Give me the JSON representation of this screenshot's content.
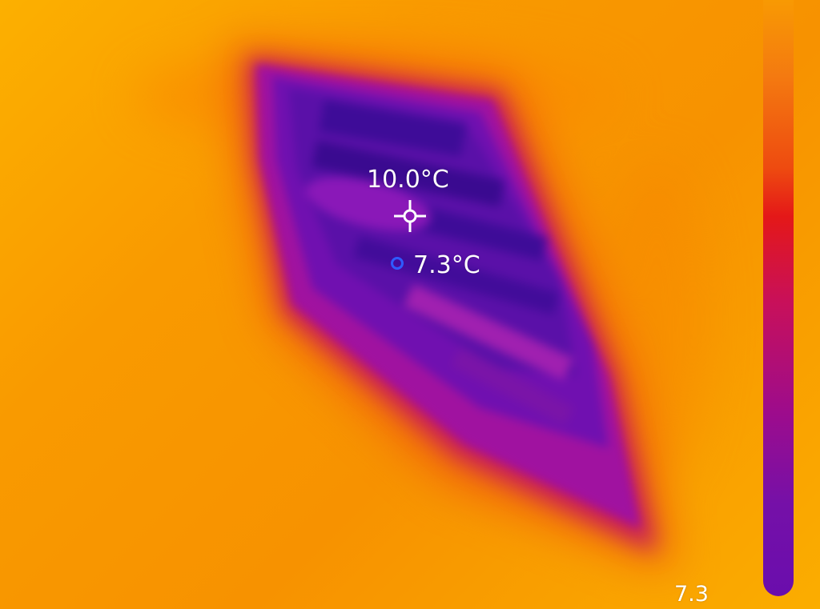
{
  "readouts": {
    "center_temp": "10.0°C",
    "min_temp": "7.3°C",
    "scale_min": "7.3"
  },
  "icons": {
    "center": "crosshair-icon",
    "min": "circle-marker-icon"
  },
  "colors": {
    "palette": [
      "#f9a000",
      "#ee4b10",
      "#e41818",
      "#c8105a",
      "#9d0c8c",
      "#6a0dad"
    ],
    "min_marker": "#2f5bff"
  }
}
